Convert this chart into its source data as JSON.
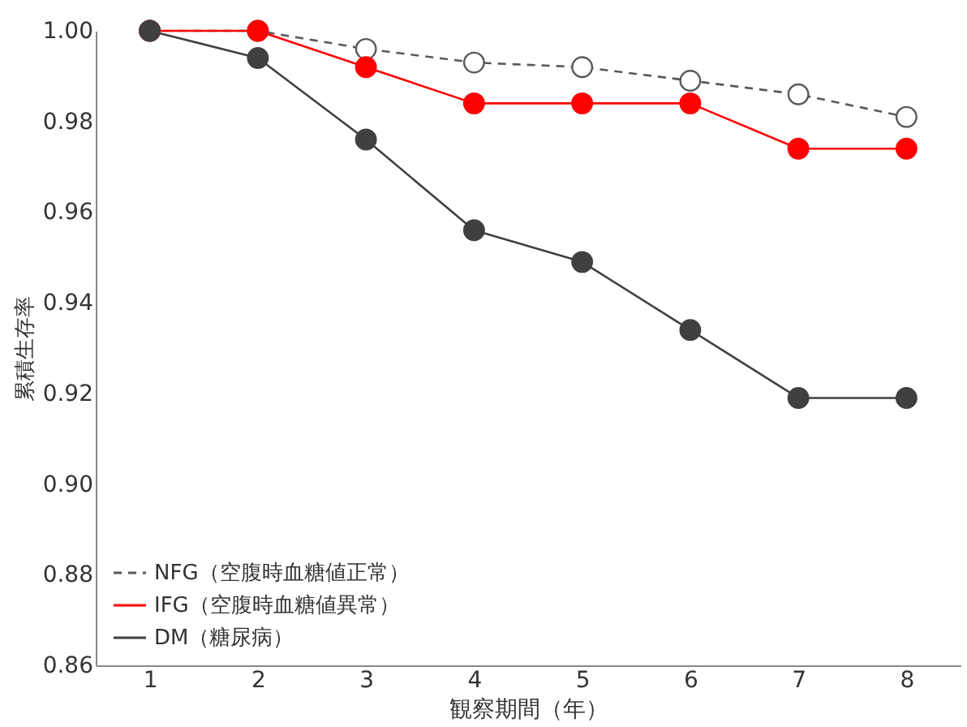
{
  "chart_data": {
    "type": "line",
    "xlabel": "観察期間（年）",
    "ylabel": "累積生存率",
    "categories": [
      "1",
      "2",
      "3",
      "4",
      "5",
      "6",
      "7",
      "8"
    ],
    "series": [
      {
        "name": "NFG（空腹時血糖値正常）",
        "color": "#595959",
        "line_style": "dashed",
        "values": [
          1.0,
          1.0,
          0.996,
          0.993,
          0.992,
          0.989,
          0.986,
          0.981
        ]
      },
      {
        "name": "IFG（空腹時血糖値異常）",
        "color": "#ff0000",
        "values": [
          1.0,
          1.0,
          0.992,
          0.984,
          0.984,
          0.984,
          0.974,
          0.974
        ]
      },
      {
        "name": "DM（糖尿病）",
        "color": "#404040",
        "values": [
          1.0,
          0.994,
          0.976,
          0.956,
          0.949,
          0.934,
          0.919,
          0.919
        ]
      }
    ],
    "ylim": [
      0.86,
      1.0
    ],
    "yticks": [
      0.86,
      0.88,
      {
        "value": 0.9,
        "label": "0.90"
      },
      0.92,
      0.94,
      0.96,
      0.98,
      {
        "value": 1.0,
        "label": "1.00"
      }
    ],
    "grid": false,
    "legend": "bottom left",
    "marker": "circle",
    "line_style": "solid"
  }
}
